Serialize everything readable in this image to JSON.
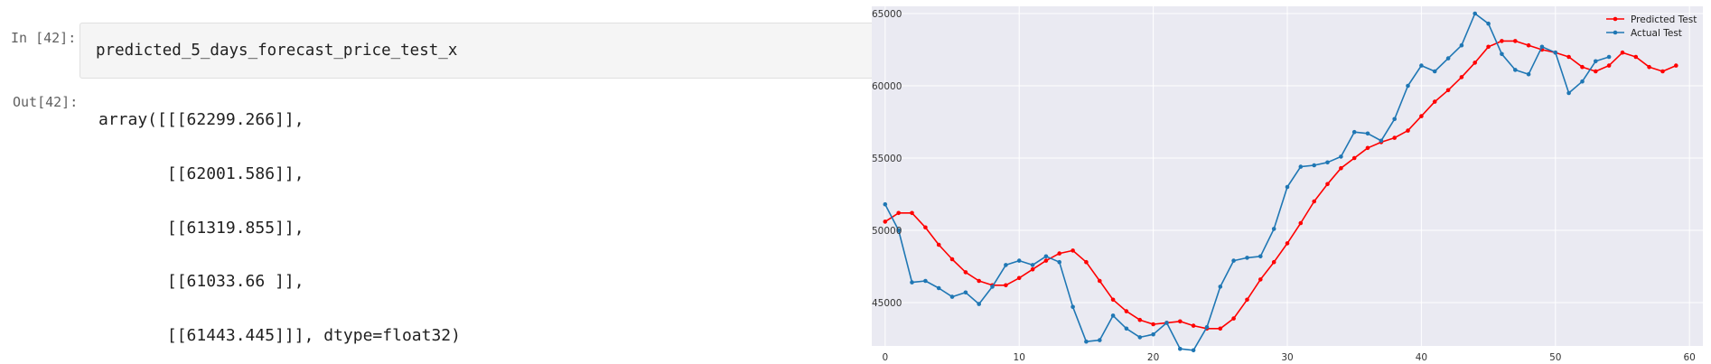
{
  "cell": {
    "in_prompt": "In [42]:",
    "out_prompt": "Out[42]:",
    "input_code": "predicted_5_days_forecast_price_test_x",
    "output_lines": [
      "array([[[62299.266]],",
      "       [[62001.586]],",
      "       [[61319.855]],",
      "       [[61033.66 ]],",
      "       [[61443.445]]], dtype=float32)"
    ]
  },
  "chart_data": {
    "type": "line",
    "title": "",
    "xlabel": "",
    "ylabel": "",
    "xlim": [
      -1,
      61
    ],
    "ylim": [
      42000,
      65500
    ],
    "xticks": [
      0,
      10,
      20,
      30,
      40,
      50,
      60
    ],
    "yticks": [
      45000,
      50000,
      55000,
      60000,
      65000
    ],
    "grid": true,
    "background": "#eaeaf2",
    "legend_position": "top-right",
    "series": [
      {
        "name": "Predicted Test",
        "color": "#ff0000",
        "x": [
          0,
          1,
          2,
          3,
          4,
          5,
          6,
          7,
          8,
          9,
          10,
          11,
          12,
          13,
          14,
          15,
          16,
          17,
          18,
          19,
          20,
          21,
          22,
          23,
          24,
          25,
          26,
          27,
          28,
          29,
          30,
          31,
          32,
          33,
          34,
          35,
          36,
          37,
          38,
          39,
          40,
          41,
          42,
          43,
          44,
          45,
          46,
          47,
          48,
          49,
          50,
          51,
          52,
          53,
          54,
          55,
          56,
          57,
          58,
          59
        ],
        "values": [
          50600,
          51200,
          51200,
          50200,
          49000,
          48000,
          47100,
          46500,
          46200,
          46200,
          46700,
          47300,
          47900,
          48400,
          48600,
          47800,
          46500,
          45200,
          44400,
          43800,
          43500,
          43600,
          43700,
          43400,
          43200,
          43200,
          43900,
          45200,
          46600,
          47800,
          49100,
          50500,
          52000,
          53200,
          54300,
          55000,
          55700,
          56100,
          56400,
          56900,
          57900,
          58900,
          59700,
          60600,
          61600,
          62700,
          63100,
          63100,
          62800,
          62500,
          62300,
          62000,
          61300,
          61000,
          61400,
          62300,
          62000,
          61300,
          61000,
          61400
        ]
      },
      {
        "name": "Actual Test",
        "color": "#1f77b4",
        "x": [
          0,
          1,
          2,
          3,
          4,
          5,
          6,
          7,
          8,
          9,
          10,
          11,
          12,
          13,
          14,
          15,
          16,
          17,
          18,
          19,
          20,
          21,
          22,
          23,
          24,
          25,
          26,
          27,
          28,
          29,
          30,
          31,
          32,
          33,
          34,
          35,
          36,
          37,
          38,
          39,
          40,
          41,
          42,
          43,
          44,
          45,
          46,
          47,
          48,
          49,
          50,
          51,
          52,
          53,
          54
        ],
        "values": [
          51800,
          50000,
          46400,
          46500,
          46000,
          45400,
          45700,
          44900,
          46100,
          47600,
          47900,
          47600,
          48200,
          47800,
          44700,
          42300,
          42400,
          44100,
          43200,
          42600,
          42800,
          43600,
          41800,
          41700,
          43300,
          46100,
          47900,
          48100,
          48200,
          50100,
          53000,
          54400,
          54500,
          54700,
          55100,
          56800,
          56700,
          56200,
          57700,
          60000,
          61400,
          61000,
          61900,
          62800,
          65000,
          64300,
          62200,
          61100,
          60800,
          62700,
          62300,
          59500,
          60300,
          61700,
          62000
        ]
      }
    ]
  }
}
